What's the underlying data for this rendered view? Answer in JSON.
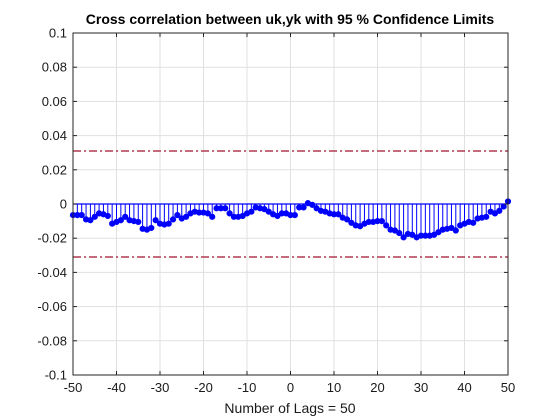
{
  "chart_data": {
    "type": "stem",
    "title": "Cross correlation between uk,yk with 95 % Confidence Limits",
    "xlabel": "Number of Lags = 50",
    "ylabel": "",
    "xlim": [
      -50,
      50
    ],
    "ylim": [
      -0.1,
      0.1
    ],
    "xticks": [
      -50,
      -40,
      -30,
      -20,
      -10,
      0,
      10,
      20,
      30,
      40,
      50
    ],
    "yticks": [
      -0.1,
      -0.08,
      -0.06,
      -0.04,
      -0.02,
      0,
      0.02,
      0.04,
      0.06,
      0.08,
      0.1
    ],
    "xtick_labels": [
      "-50",
      "-40",
      "-30",
      "-20",
      "-10",
      "0",
      "10",
      "20",
      "30",
      "40",
      "50"
    ],
    "ytick_labels": [
      "-0.1",
      "-0.08",
      "-0.06",
      "-0.04",
      "-0.02",
      "0",
      "0.02",
      "0.04",
      "0.06",
      "0.08",
      "0.1"
    ],
    "grid": true,
    "confidence_limits": [
      0.031,
      -0.031
    ],
    "colors": {
      "stem": "#0000ff",
      "confidence": "#a2142f"
    },
    "x": [
      -50,
      -49,
      -48,
      -47,
      -46,
      -45,
      -44,
      -43,
      -42,
      -41,
      -40,
      -39,
      -38,
      -37,
      -36,
      -35,
      -34,
      -33,
      -32,
      -31,
      -30,
      -29,
      -28,
      -27,
      -26,
      -25,
      -24,
      -23,
      -22,
      -21,
      -20,
      -19,
      -18,
      -17,
      -16,
      -15,
      -14,
      -13,
      -12,
      -11,
      -10,
      -9,
      -8,
      -7,
      -6,
      -5,
      -4,
      -3,
      -2,
      -1,
      0,
      1,
      2,
      3,
      4,
      5,
      6,
      7,
      8,
      9,
      10,
      11,
      12,
      13,
      14,
      15,
      16,
      17,
      18,
      19,
      20,
      21,
      22,
      23,
      24,
      25,
      26,
      27,
      28,
      29,
      30,
      31,
      32,
      33,
      34,
      35,
      36,
      37,
      38,
      39,
      40,
      41,
      42,
      43,
      44,
      45,
      46,
      47,
      48,
      49,
      50
    ],
    "y": [
      -0.0065,
      -0.0065,
      -0.0065,
      -0.009,
      -0.0095,
      -0.0075,
      -0.0055,
      -0.006,
      -0.007,
      -0.0115,
      -0.0105,
      -0.0095,
      -0.0075,
      -0.0095,
      -0.01,
      -0.0105,
      -0.0145,
      -0.015,
      -0.014,
      -0.0095,
      -0.0115,
      -0.012,
      -0.0115,
      -0.009,
      -0.0065,
      -0.0085,
      -0.0075,
      -0.0055,
      -0.0045,
      -0.005,
      -0.005,
      -0.0055,
      -0.0075,
      -0.0025,
      -0.0025,
      -0.0025,
      -0.0055,
      -0.0075,
      -0.0075,
      -0.007,
      -0.0055,
      -0.0045,
      -0.002,
      -0.0025,
      -0.003,
      -0.0045,
      -0.006,
      -0.007,
      -0.0055,
      -0.0055,
      -0.0065,
      -0.0065,
      -0.002,
      -0.002,
      0.0005,
      -0.0005,
      -0.0025,
      -0.004,
      -0.0045,
      -0.0055,
      -0.006,
      -0.006,
      -0.008,
      -0.009,
      -0.011,
      -0.0125,
      -0.013,
      -0.0115,
      -0.0105,
      -0.0105,
      -0.01,
      -0.01,
      -0.0125,
      -0.015,
      -0.0155,
      -0.017,
      -0.0195,
      -0.0175,
      -0.018,
      -0.0195,
      -0.0185,
      -0.0185,
      -0.0185,
      -0.018,
      -0.0165,
      -0.015,
      -0.0145,
      -0.014,
      -0.0155,
      -0.0125,
      -0.0115,
      -0.0105,
      -0.011,
      -0.0085,
      -0.008,
      -0.0075,
      -0.0045,
      -0.0055,
      -0.004,
      -0.0015,
      0.0015
    ]
  }
}
